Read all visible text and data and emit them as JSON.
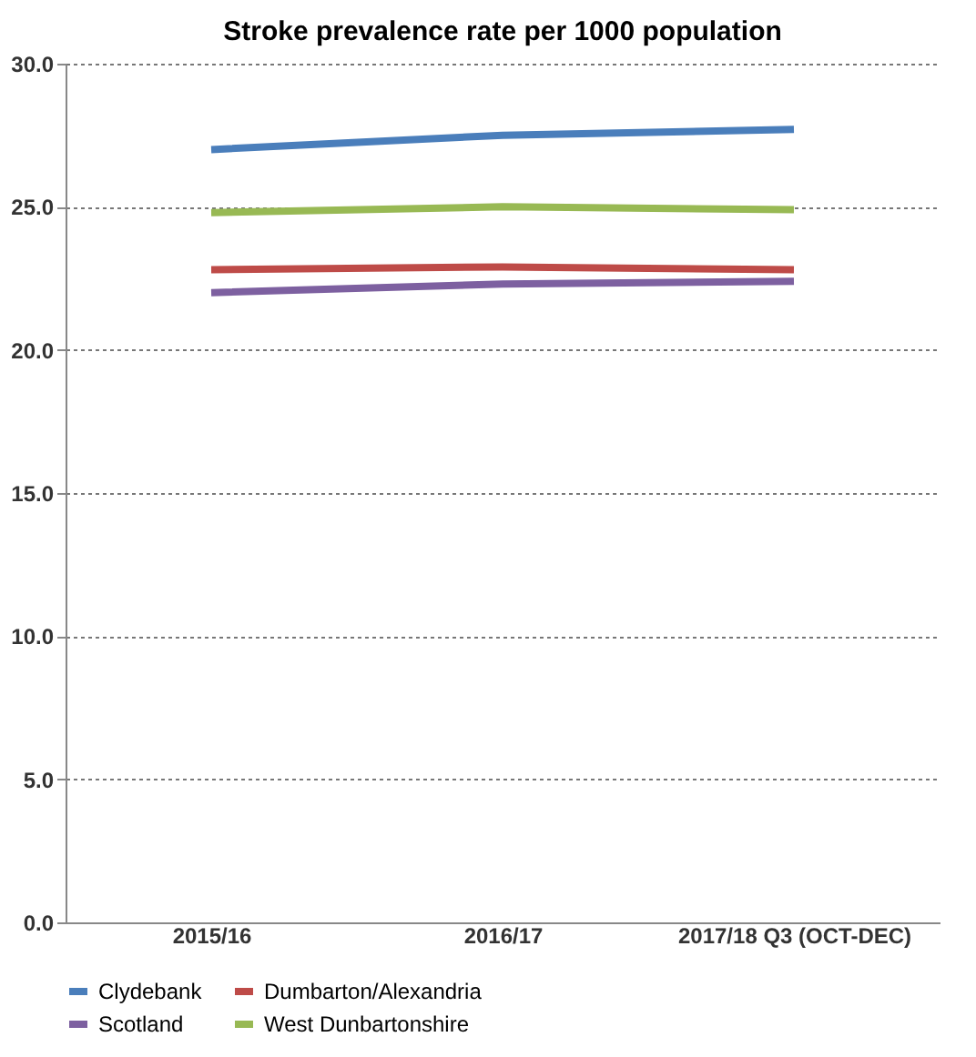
{
  "chart_data": {
    "type": "line",
    "title": "Stroke prevalence rate per 1000 population",
    "categories": [
      "2015/16",
      "2016/17",
      "2017/18 Q3 (OCT-DEC)"
    ],
    "series": [
      {
        "name": "Clydebank",
        "color": "#4a7ebb",
        "values": [
          27.0,
          27.5,
          27.7
        ]
      },
      {
        "name": "Dumbarton/Alexandria",
        "color": "#be4b48",
        "values": [
          22.8,
          22.9,
          22.8
        ]
      },
      {
        "name": "Scotland",
        "color": "#7d60a0",
        "values": [
          22.0,
          22.3,
          22.4
        ]
      },
      {
        "name": "West Dunbartonshire",
        "color": "#98b954",
        "values": [
          24.8,
          25.0,
          24.9
        ]
      }
    ],
    "ylim": [
      0,
      30
    ],
    "yticks": [
      {
        "value": 0,
        "label": "0.0"
      },
      {
        "value": 5,
        "label": "5.0"
      },
      {
        "value": 10,
        "label": "10.0"
      },
      {
        "value": 15,
        "label": "15.0"
      },
      {
        "value": 20,
        "label": "20.0"
      },
      {
        "value": 25,
        "label": "25.0"
      },
      {
        "value": 30,
        "label": "30.0"
      }
    ],
    "grid": "y",
    "legend": "bottom",
    "marker": "none",
    "line_style": "solid"
  }
}
